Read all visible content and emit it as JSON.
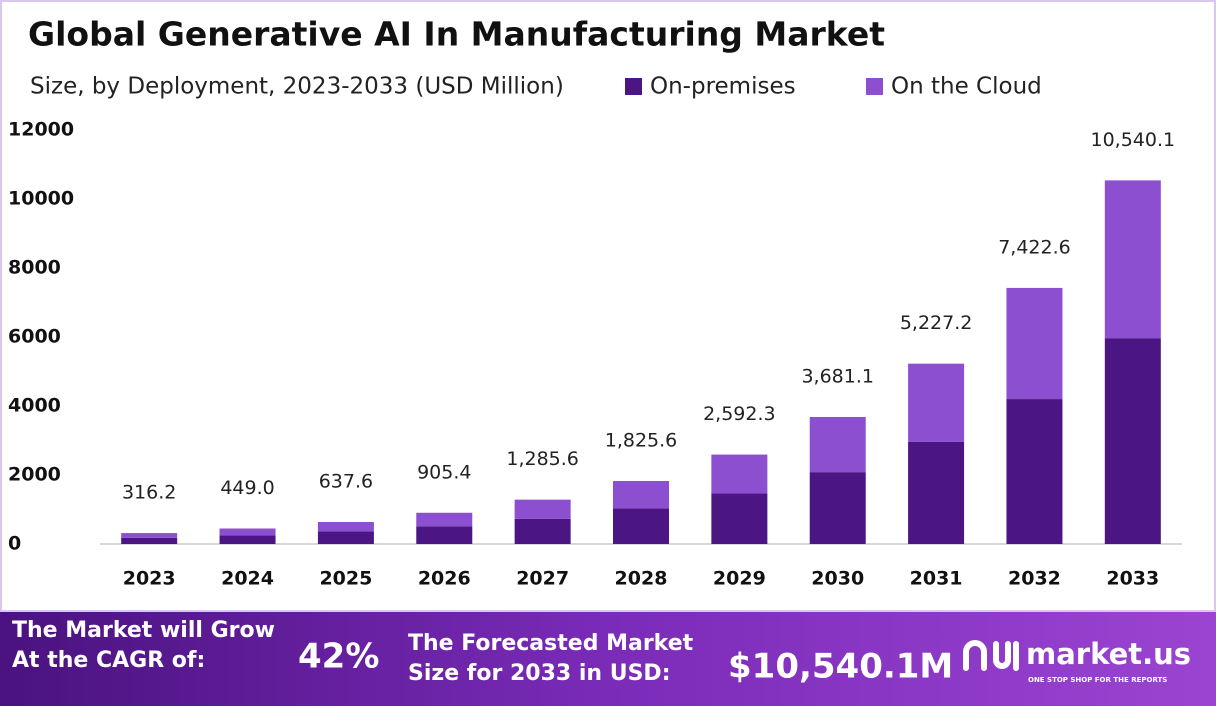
{
  "chart_data": {
    "type": "bar",
    "stacked": true,
    "title": "Global Generative AI In Manufacturing Market",
    "subtitle": "Size, by Deployment, 2023-2033 (USD Million)",
    "categories": [
      "2023",
      "2024",
      "2025",
      "2026",
      "2027",
      "2028",
      "2029",
      "2030",
      "2031",
      "2032",
      "2033"
    ],
    "series": [
      {
        "name": "On-premises",
        "color": "#4b1583",
        "values": [
          179,
          254,
          361,
          512,
          728,
          1033,
          1467,
          2083,
          2958,
          4201,
          5966
        ]
      },
      {
        "name": "On the Cloud",
        "color": "#8b4fd0",
        "values": [
          137.2,
          195.0,
          276.6,
          393.4,
          557.6,
          792.6,
          1125.3,
          1598.1,
          2269.2,
          3221.6,
          4574.1
        ]
      }
    ],
    "totals": [
      316.2,
      449.0,
      637.6,
      905.4,
      1285.6,
      1825.6,
      2592.3,
      3681.1,
      5227.2,
      7422.6,
      10540.1
    ],
    "total_labels": [
      "316.2",
      "449.0",
      "637.6",
      "905.4",
      "1,285.6",
      "1,825.6",
      "2,592.3",
      "3,681.1",
      "5,227.2",
      "7,422.6",
      "10,540.1"
    ],
    "ylim": [
      0,
      12000
    ],
    "yticks": [
      0,
      2000,
      4000,
      6000,
      8000,
      10000,
      12000
    ],
    "grid": false,
    "legend": "top"
  },
  "footer": {
    "cagr_text": [
      "The Market will Grow",
      "At the CAGR of:"
    ],
    "cagr": "42%",
    "forecast_text": [
      "The Forecasted Market",
      "Size for 2033 in USD:"
    ],
    "forecast": "$10,540.1M",
    "brand": "market.us",
    "tagline": "ONE STOP SHOP FOR THE REPORTS"
  }
}
